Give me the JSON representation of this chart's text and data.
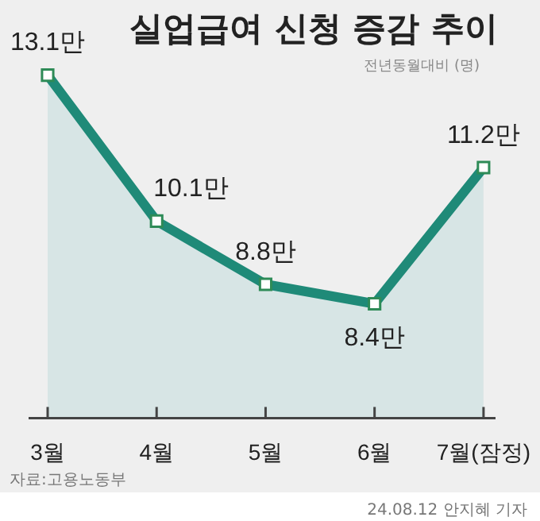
{
  "chart_data": {
    "type": "area",
    "title": "실업급여 신청 증감 추이",
    "subtitle": "전년동월대비 (명)",
    "categories": [
      "3월",
      "4월",
      "5월",
      "6월",
      "7월(잠정)"
    ],
    "series": [
      {
        "color": "#1f8a78",
        "values": [
          13.1,
          10.1,
          8.8,
          8.4,
          11.2
        ],
        "value_labels": [
          "13.1만",
          "10.1만",
          "8.8만",
          "8.4만",
          "11.2만"
        ]
      }
    ],
    "marker": "square",
    "grid": false,
    "legend": false,
    "annotations": [
      "자료:고용노동부",
      "24.08.12 안지혜 기자"
    ]
  }
}
